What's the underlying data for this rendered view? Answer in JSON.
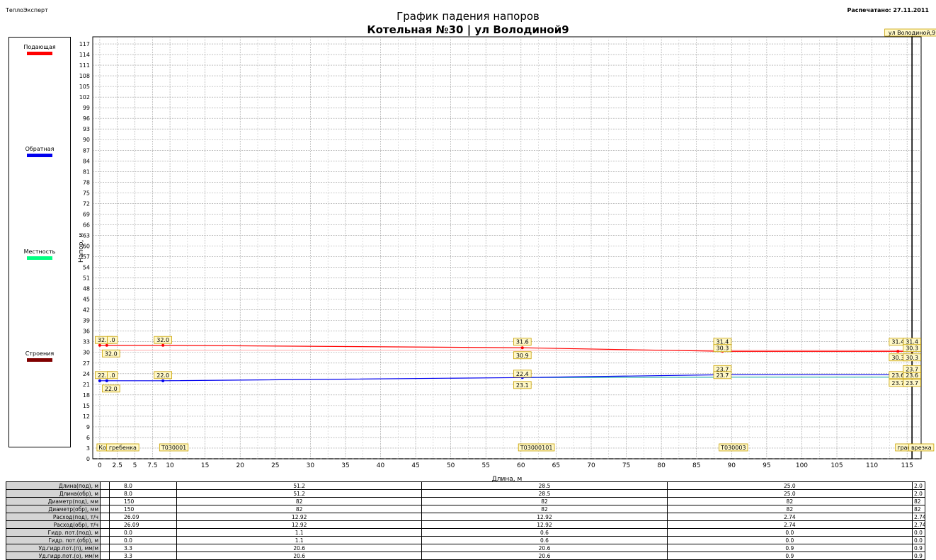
{
  "header": {
    "app_name": "ТеплоЭксперт",
    "printed": "Распечатано: 27.11.2011"
  },
  "chart_data": {
    "type": "line",
    "title": "График падения напоров",
    "subtitle": "Котельная №30 | ул Володиной9",
    "xlabel": "Длина, м",
    "ylabel": "Напор, м",
    "xlim": [
      -1,
      117
    ],
    "ylim": [
      0,
      119
    ],
    "x_ticks": [
      0,
      2.5,
      5,
      7.5,
      10,
      15,
      20,
      25,
      30,
      35,
      40,
      45,
      50,
      55,
      60,
      65,
      70,
      75,
      80,
      85,
      90,
      95,
      100,
      105,
      110,
      115
    ],
    "y_ticks": [
      0,
      3,
      6,
      9,
      12,
      15,
      18,
      21,
      24,
      27,
      30,
      33,
      36,
      39,
      42,
      45,
      48,
      51,
      54,
      57,
      60,
      63,
      66,
      69,
      72,
      75,
      78,
      81,
      84,
      87,
      90,
      93,
      96,
      99,
      102,
      105,
      108,
      111,
      114,
      117
    ],
    "grid": true,
    "series": [
      {
        "name": "Подающая",
        "color": "#ff0000",
        "x": [
          0,
          1,
          9,
          60.2,
          88.7,
          113.7,
          115.7
        ],
        "y": [
          32.0,
          32.0,
          32.0,
          31.3,
          30.3,
          30.3,
          30.3
        ]
      },
      {
        "name": "Обратная",
        "color": "#0000ee",
        "x": [
          0,
          1,
          9,
          60.2,
          88.7,
          113.7,
          115.7
        ],
        "y": [
          22.0,
          22.0,
          22.0,
          22.9,
          23.7,
          23.7,
          23.7
        ]
      },
      {
        "name": "Местность",
        "color": "#00ff80",
        "x": [],
        "y": []
      },
      {
        "name": "Строения",
        "color": "#800000",
        "x": [],
        "y": []
      }
    ],
    "aux_lines": [
      {
        "color": "#ffaaaa",
        "x": [
          0,
          115.7
        ],
        "y": [
          30.6,
          30.6
        ]
      },
      {
        "color": "#00a0a0",
        "x": [
          60.2,
          88.7,
          115.7
        ],
        "y": [
          22.9,
          23.0,
          23.0
        ]
      }
    ],
    "annotations": [
      {
        "text": "32.0",
        "x": 0.6,
        "y": 33.5
      },
      {
        "text": ".0",
        "x": 1.8,
        "y": 33.5
      },
      {
        "text": "32.0",
        "x": 1.6,
        "y": 29.7
      },
      {
        "text": "32.0",
        "x": 9.0,
        "y": 33.5
      },
      {
        "text": "31.6",
        "x": 60.2,
        "y": 33.0
      },
      {
        "text": "30.9",
        "x": 60.2,
        "y": 29.2
      },
      {
        "text": "31.4",
        "x": 88.7,
        "y": 33.0
      },
      {
        "text": "30.3",
        "x": 88.7,
        "y": 31.2
      },
      {
        "text": "31.4",
        "x": 113.7,
        "y": 33.0
      },
      {
        "text": "31.4",
        "x": 115.7,
        "y": 33.0
      },
      {
        "text": "30.3",
        "x": 115.7,
        "y": 31.2
      },
      {
        "text": "30.3",
        "x": 113.7,
        "y": 28.6
      },
      {
        "text": "30.3",
        "x": 115.7,
        "y": 28.6
      },
      {
        "text": "22.0",
        "x": 0.6,
        "y": 23.6
      },
      {
        "text": ".0",
        "x": 1.8,
        "y": 23.6
      },
      {
        "text": "22.0",
        "x": 1.6,
        "y": 19.8
      },
      {
        "text": "22.0",
        "x": 9.0,
        "y": 23.6
      },
      {
        "text": "22.4",
        "x": 60.2,
        "y": 24.0
      },
      {
        "text": "23.1",
        "x": 60.2,
        "y": 20.8
      },
      {
        "text": "23.7",
        "x": 88.7,
        "y": 25.3
      },
      {
        "text": "23.7",
        "x": 88.7,
        "y": 23.6
      },
      {
        "text": "23.6",
        "x": 113.7,
        "y": 23.6
      },
      {
        "text": "23.6",
        "x": 115.7,
        "y": 23.6
      },
      {
        "text": "23.7",
        "x": 115.7,
        "y": 25.3
      },
      {
        "text": "23.7",
        "x": 113.7,
        "y": 21.4
      },
      {
        "text": "23.7",
        "x": 115.7,
        "y": 21.4
      }
    ],
    "node_labels": [
      {
        "text": "Котел",
        "x": 0.0
      },
      {
        "text": "гребенка",
        "x": 1.5
      },
      {
        "text": "Т030001",
        "x": 9.0
      },
      {
        "text": "Т03000101",
        "x": 60.2
      },
      {
        "text": "Т030003",
        "x": 88.7
      },
      {
        "text": "гран",
        "x": 113.7
      },
      {
        "text": "врезка",
        "x": 115.7
      }
    ],
    "end_label": {
      "text": "ул Володиной,9",
      "x": 115.7
    }
  },
  "table": {
    "rows": [
      {
        "label": "Длина(под), м",
        "values": [
          "8.0",
          "51.2",
          "28.5",
          "25.0",
          "2.0"
        ]
      },
      {
        "label": "Длина(обр), м",
        "values": [
          "8.0",
          "51.2",
          "28.5",
          "25.0",
          "2.0"
        ]
      },
      {
        "label": "Диаметр(под), мм",
        "values": [
          "150",
          "82",
          "82",
          "82",
          "82"
        ]
      },
      {
        "label": "Диаметр(обр), мм",
        "values": [
          "150",
          "82",
          "82",
          "82",
          "82"
        ]
      },
      {
        "label": "Расход(под), т/ч",
        "values": [
          "26.09",
          "12.92",
          "12.92",
          "2.74",
          "2.74"
        ]
      },
      {
        "label": "Расход(обр), т/ч",
        "values": [
          "26.09",
          "12.92",
          "12.92",
          "2.74",
          "2.74"
        ]
      },
      {
        "label": "Гидр. пот.(под), м",
        "values": [
          "0.0",
          "1.1",
          "0.6",
          "0.0",
          "0.0"
        ]
      },
      {
        "label": "Гидр. пот.(обр), м",
        "values": [
          "0.0",
          "1.1",
          "0.6",
          "0.0",
          "0.0"
        ]
      },
      {
        "label": "Уд.гидр.пот.(п), мм/м",
        "values": [
          "3.3",
          "20.6",
          "20.6",
          "0.9",
          "0.9"
        ]
      },
      {
        "label": "Уд.гидр.пот.(о), мм/м",
        "values": [
          "3.3",
          "20.6",
          "20.6",
          "0.9",
          "0.9"
        ]
      }
    ]
  }
}
